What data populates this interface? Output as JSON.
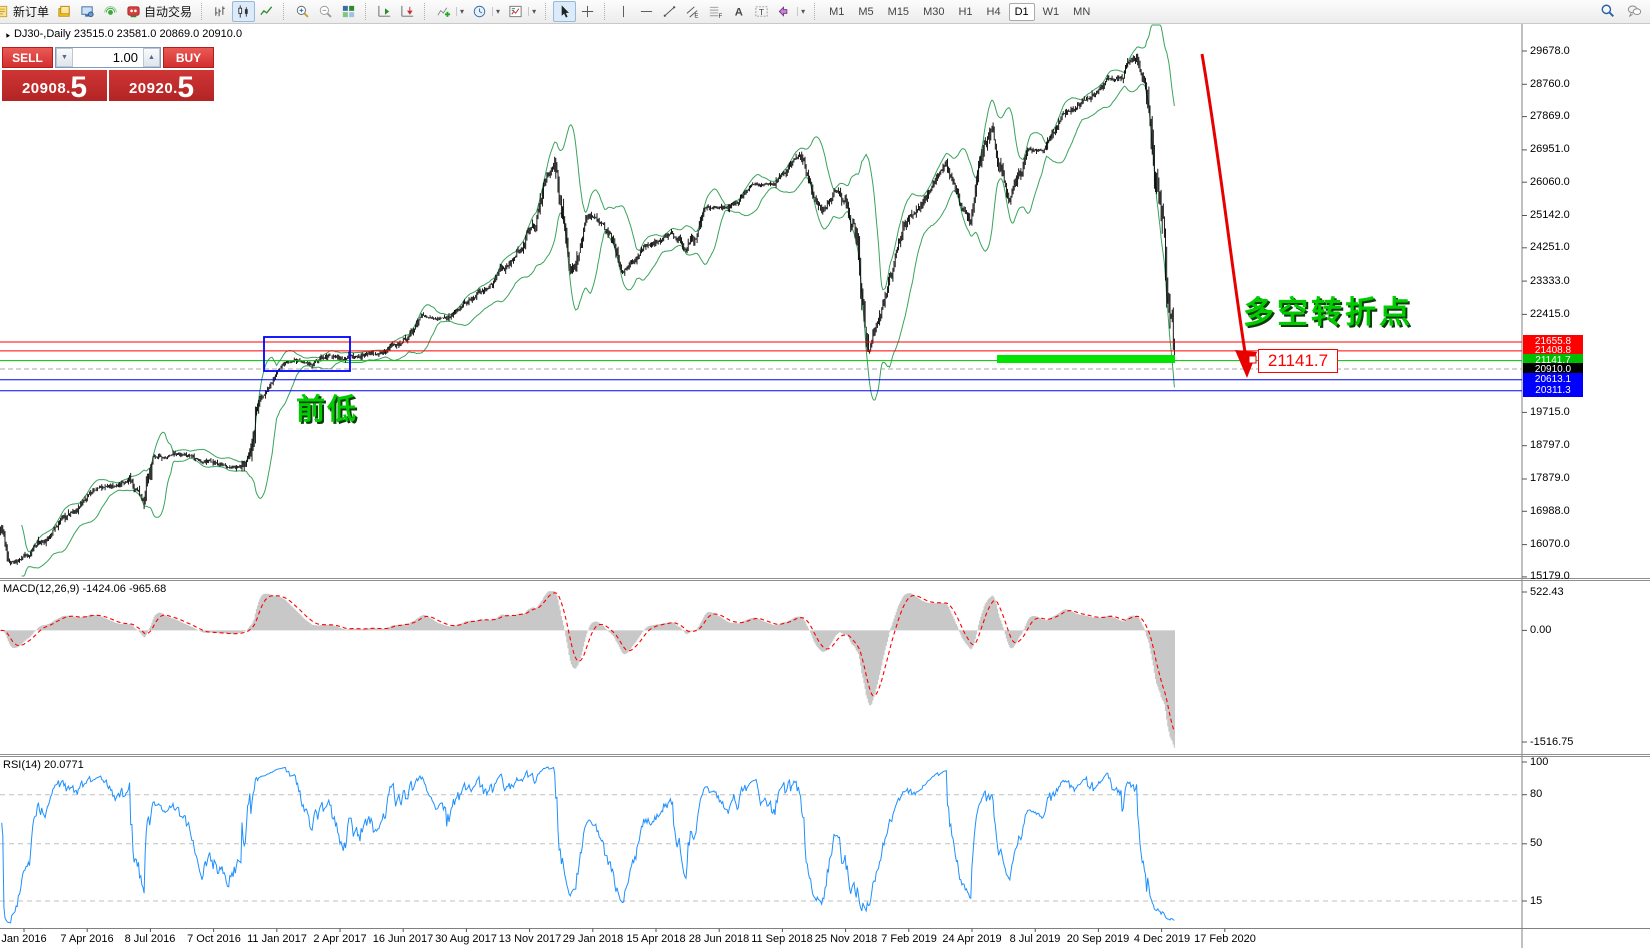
{
  "window": {
    "symbol_title": "DJ30-,Daily  23515.0 23581.0 20869.0 20910.0"
  },
  "toolbar": {
    "groups": [
      {
        "items": [
          {
            "icon": "new-order",
            "label": "新订单"
          },
          {
            "icon": "history"
          },
          {
            "icon": "terminal"
          },
          {
            "icon": "signals"
          },
          {
            "icon": "autotrading",
            "label": "自动交易"
          }
        ]
      },
      {
        "items": [
          {
            "icon": "bar-chart"
          },
          {
            "icon": "candlestick-chart",
            "pressed": true
          },
          {
            "icon": "line-chart"
          }
        ]
      },
      {
        "items": [
          {
            "icon": "zoom-in"
          },
          {
            "icon": "zoom-out"
          },
          {
            "icon": "tile-windows"
          }
        ]
      },
      {
        "items": [
          {
            "icon": "auto-scroll"
          },
          {
            "icon": "chart-shift"
          }
        ]
      },
      {
        "items": [
          {
            "icon": "indicators",
            "caret": true
          },
          {
            "icon": "periods",
            "caret": true
          },
          {
            "icon": "templates",
            "caret": true
          }
        ]
      },
      {
        "items": [
          {
            "icon": "cursor",
            "pressed": true
          },
          {
            "icon": "crosshair"
          }
        ]
      },
      {
        "items": [
          {
            "icon": "vertical-line"
          },
          {
            "icon": "horizontal-line"
          },
          {
            "icon": "trendline"
          },
          {
            "icon": "equidistant-channel"
          },
          {
            "icon": "fibonacci"
          },
          {
            "icon": "text"
          },
          {
            "icon": "text-label"
          },
          {
            "icon": "arrows",
            "caret": true
          }
        ]
      }
    ],
    "timeframes": [
      "M1",
      "M5",
      "M15",
      "M30",
      "H1",
      "H4",
      "D1",
      "W1",
      "MN"
    ],
    "active_timeframe": "D1",
    "right_icons": [
      "search",
      "chat"
    ]
  },
  "trade_panel": {
    "sell_label": "SELL",
    "buy_label": "BUY",
    "volume": "1.00",
    "sell_price_main": "20908",
    "sell_price_frac": "5",
    "buy_price_main": "20920",
    "buy_price_frac": "5",
    "decimal_point": "."
  },
  "annotations": {
    "turning_point": "多空转折点",
    "previous_low": "前低",
    "level_label": "21141.7"
  },
  "colors": {
    "accent_red": "#ff0000",
    "accent_green": "#00bf00",
    "accent_blue": "#0000ff",
    "current_price_label_bg": "#000000",
    "highlight_bar": "#00e400",
    "annotation_green": "#00cc00",
    "bollinger": "#3aa35c",
    "candles": "#000000",
    "macd_histogram": "#c8c8c8",
    "macd_signal": "#ff0000",
    "rsi_line": "#1e90ff",
    "trend_arrow": "#e80000"
  },
  "chart_data": {
    "type": "candlestick",
    "symbol": "DJ30-",
    "timeframe": "Daily",
    "quote": {
      "open": 23515.0,
      "high": 23581.0,
      "low": 20869.0,
      "close": 20910.0
    },
    "price_axis_ticks": [
      29678.0,
      28760.0,
      27869.0,
      26951.0,
      26060.0,
      25142.0,
      24251.0,
      23333.0,
      22415.0,
      19715.0,
      18797.0,
      17879.0,
      16988.0,
      16070.0,
      15179.0
    ],
    "price_axis_range": {
      "top_value": 29678.0,
      "bottom_value": 15179.0
    },
    "levels": [
      {
        "value": 21655.8,
        "color": "red"
      },
      {
        "value": 21408.8,
        "color": "red"
      },
      {
        "value": 21141.7,
        "color": "green"
      },
      {
        "value": 20910.0,
        "color": "current"
      },
      {
        "value": 20613.1,
        "color": "blue"
      },
      {
        "value": 20311.3,
        "color": "blue"
      }
    ],
    "macd": {
      "label": "MACD(12,26,9) -1424.06 -965.68",
      "params": [
        12,
        26,
        9
      ],
      "values_shown": [
        -1424.06,
        -965.68
      ],
      "ticks": [
        "522.43",
        "0.00",
        "-1516.75"
      ],
      "range": {
        "top_value": 522.43,
        "bottom_value": -1516.75
      }
    },
    "rsi": {
      "label": "RSI(14) 20.0771",
      "period": 14,
      "value": 20.0771,
      "ticks": [
        "100",
        "80",
        "50",
        "15"
      ],
      "dashed_levels": [
        80,
        50,
        15
      ],
      "range": {
        "top_value": 100,
        "bottom_value": 15
      }
    },
    "x_ticks": [
      "Jan 2016",
      "7 Apr 2016",
      "8 Jul 2016",
      "7 Oct 2016",
      "11 Jan 2017",
      "2 Apr 2017",
      "16 Jun 2017",
      "30 Aug 2017",
      "13 Nov 2017",
      "29 Jan 2018",
      "15 Apr 2018",
      "28 Jun 2018",
      "11 Sep 2018",
      "25 Nov 2018",
      "7 Feb 2019",
      "24 Apr 2019",
      "8 Jul 2019",
      "20 Sep 2019",
      "4 Dec 2019",
      "17 Feb 2020"
    ],
    "price_series": {
      "bar_count": 1056,
      "anchors": [
        [
          0.0,
          16350
        ],
        [
          0.008,
          15650
        ],
        [
          0.02,
          15750
        ],
        [
          0.04,
          16450
        ],
        [
          0.06,
          17000
        ],
        [
          0.08,
          17700
        ],
        [
          0.1,
          17750
        ],
        [
          0.11,
          17850
        ],
        [
          0.122,
          17250
        ],
        [
          0.13,
          18300
        ],
        [
          0.15,
          18550
        ],
        [
          0.17,
          18450
        ],
        [
          0.19,
          18250
        ],
        [
          0.205,
          18150
        ],
        [
          0.213,
          18600
        ],
        [
          0.22,
          20500
        ],
        [
          0.235,
          21000
        ],
        [
          0.25,
          21150
        ],
        [
          0.265,
          21050
        ],
        [
          0.28,
          21250
        ],
        [
          0.295,
          21150
        ],
        [
          0.31,
          21450
        ],
        [
          0.325,
          21350
        ],
        [
          0.34,
          21700
        ],
        [
          0.36,
          22300
        ],
        [
          0.38,
          22300
        ],
        [
          0.4,
          22800
        ],
        [
          0.42,
          23300
        ],
        [
          0.44,
          24100
        ],
        [
          0.455,
          25100
        ],
        [
          0.465,
          26300
        ],
        [
          0.472,
          26600
        ],
        [
          0.487,
          23900
        ],
        [
          0.5,
          25200
        ],
        [
          0.515,
          24700
        ],
        [
          0.53,
          23600
        ],
        [
          0.55,
          24300
        ],
        [
          0.57,
          24800
        ],
        [
          0.585,
          24300
        ],
        [
          0.6,
          25300
        ],
        [
          0.62,
          25400
        ],
        [
          0.64,
          25950
        ],
        [
          0.66,
          26000
        ],
        [
          0.68,
          26800
        ],
        [
          0.7,
          25300
        ],
        [
          0.715,
          25900
        ],
        [
          0.73,
          24300
        ],
        [
          0.74,
          21800
        ],
        [
          0.755,
          23100
        ],
        [
          0.77,
          24500
        ],
        [
          0.79,
          25800
        ],
        [
          0.805,
          26400
        ],
        [
          0.825,
          24900
        ],
        [
          0.845,
          27200
        ],
        [
          0.86,
          25600
        ],
        [
          0.875,
          26900
        ],
        [
          0.89,
          27000
        ],
        [
          0.905,
          27800
        ],
        [
          0.925,
          28300
        ],
        [
          0.945,
          28900
        ],
        [
          0.955,
          29000
        ],
        [
          0.962,
          29400
        ],
        [
          0.968,
          29560
        ],
        [
          0.972,
          29250
        ],
        [
          0.976,
          29000
        ],
        [
          0.98,
          27800
        ],
        [
          0.985,
          26000
        ],
        [
          0.99,
          24400
        ],
        [
          0.994,
          22500
        ],
        [
          1.0,
          20900
        ]
      ]
    }
  }
}
